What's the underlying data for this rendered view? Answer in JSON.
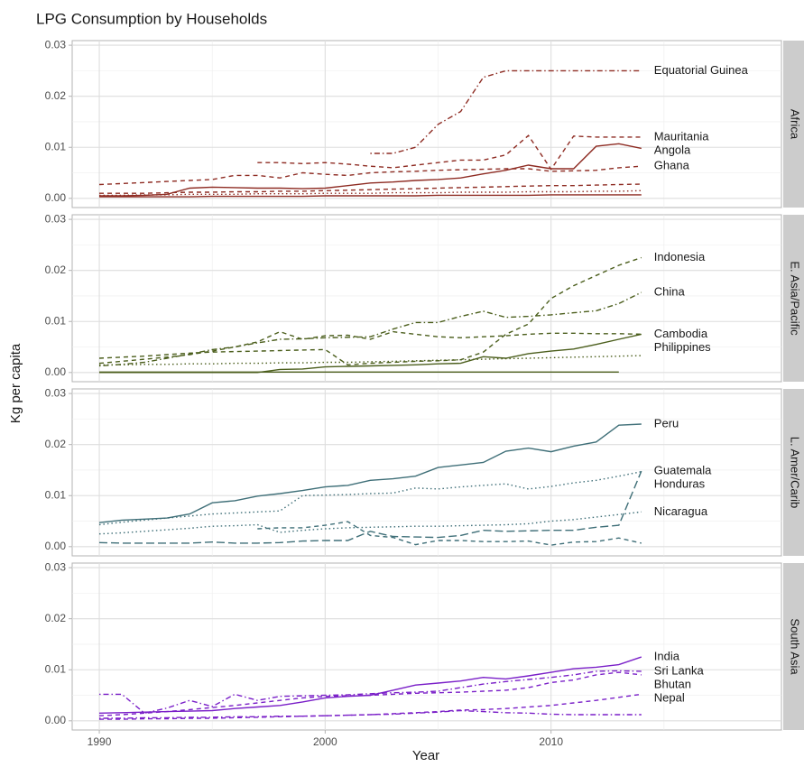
{
  "title": "LPG Consumption by Households",
  "xlabel": "Year",
  "ylabel": "Kg per capita",
  "chart_data": [
    {
      "type": "line",
      "panel": "Africa",
      "x": [
        1990,
        1991,
        1992,
        1993,
        1994,
        1995,
        1996,
        1997,
        1998,
        1999,
        2000,
        2001,
        2002,
        2003,
        2004,
        2005,
        2006,
        2007,
        2008,
        2009,
        2010,
        2011,
        2012,
        2013,
        2014
      ],
      "xlim": [
        1988.8,
        2020.2
      ],
      "xticks": [
        1990,
        2000,
        2010
      ],
      "xminor_ticks": [
        1995,
        2005,
        2015
      ],
      "ylim": [
        -0.0018,
        0.0309
      ],
      "yticks": [
        {
          "value": 0,
          "label": "0.00"
        },
        {
          "value": 0.01,
          "label": "0.01"
        },
        {
          "value": 0.02,
          "label": "0.02"
        },
        {
          "value": 0.03,
          "label": "0.03"
        }
      ],
      "yminor_ticks": [
        0.005,
        0.015,
        0.025
      ],
      "series": [
        {
          "name": "Equatorial Guinea",
          "color": "#8e2c23",
          "linetype": "dotdash",
          "values": [
            null,
            null,
            null,
            null,
            null,
            null,
            null,
            null,
            null,
            null,
            null,
            null,
            0.0088,
            0.0088,
            0.01,
            0.0145,
            0.017,
            0.0237,
            0.025,
            0.025,
            0.025,
            0.025,
            0.025,
            0.025,
            0.025
          ]
        },
        {
          "name": "Mauritania",
          "color": "#8e2c23",
          "linetype": "dashed",
          "values": [
            null,
            null,
            null,
            null,
            null,
            null,
            null,
            0.007,
            0.007,
            0.0068,
            0.007,
            0.0067,
            0.0063,
            0.006,
            0.0065,
            0.007,
            0.0075,
            0.0075,
            0.0085,
            0.0123,
            0.0057,
            0.0122,
            0.012,
            0.012,
            0.012
          ]
        },
        {
          "name": "Angola",
          "color": "#8e2c23",
          "linetype": "solid",
          "values": [
            0.0005,
            0.0005,
            0.0006,
            0.0008,
            0.002,
            0.0022,
            0.0021,
            0.002,
            0.002,
            0.0019,
            0.002,
            0.0025,
            0.003,
            0.0032,
            0.0035,
            0.0037,
            0.004,
            0.0048,
            0.0055,
            0.0065,
            0.0058,
            0.0058,
            0.0102,
            0.0107,
            0.0098
          ]
        },
        {
          "name": "Ghana",
          "color": "#8e2c23",
          "linetype": "dashed",
          "values": [
            0.0027,
            0.0029,
            0.0031,
            0.0033,
            0.0035,
            0.0037,
            0.0045,
            0.0045,
            0.004,
            0.005,
            0.0047,
            0.0045,
            0.005,
            0.0052,
            0.0053,
            0.0055,
            0.0056,
            0.0057,
            0.0058,
            0.0058,
            0.0053,
            0.0054,
            0.0055,
            0.006,
            0.0063
          ]
        },
        {
          "color": "#8e2c23",
          "linetype": "dashed",
          "values": [
            0.001,
            0.001,
            0.001,
            0.0011,
            0.0012,
            0.0012,
            0.0013,
            0.0013,
            0.0014,
            0.0014,
            0.0015,
            0.0016,
            0.0017,
            0.0018,
            0.0019,
            0.002,
            0.0021,
            0.0022,
            0.0023,
            0.0024,
            0.0025,
            0.0025,
            0.0026,
            0.0027,
            0.0028
          ]
        },
        {
          "color": "#8e2c23",
          "linetype": "solid",
          "values": [
            0.0003,
            0.0003,
            0.0003,
            0.0003,
            0.0003,
            0.0004,
            0.0004,
            0.0004,
            0.0004,
            0.0004,
            0.0005,
            0.0005,
            0.0005,
            0.0005,
            0.0005,
            0.0006,
            0.0006,
            0.0006,
            0.0006,
            0.0006,
            0.0007,
            0.0007,
            0.0007,
            0.0007,
            0.0007
          ]
        },
        {
          "color": "#8e2c23",
          "linetype": "dotted",
          "values": [
            0.0006,
            0.0006,
            0.0007,
            0.0007,
            0.0008,
            0.0008,
            0.0008,
            0.0009,
            0.0009,
            0.0009,
            0.001,
            0.001,
            0.001,
            0.0011,
            0.0011,
            0.0011,
            0.0012,
            0.0012,
            0.0012,
            0.0013,
            0.0013,
            0.0013,
            0.0014,
            0.0014,
            0.0015
          ]
        }
      ]
    },
    {
      "type": "line",
      "panel": "E. Asia/Pacific",
      "x": [
        1990,
        1991,
        1992,
        1993,
        1994,
        1995,
        1996,
        1997,
        1998,
        1999,
        2000,
        2001,
        2002,
        2003,
        2004,
        2005,
        2006,
        2007,
        2008,
        2009,
        2010,
        2011,
        2012,
        2013,
        2014
      ],
      "xlim": [
        1988.8,
        2020.2
      ],
      "xticks": [
        1990,
        2000,
        2010
      ],
      "xminor_ticks": [
        1995,
        2005,
        2015
      ],
      "ylim": [
        -0.0018,
        0.0309
      ],
      "yticks": [
        {
          "value": 0,
          "label": "0.00"
        },
        {
          "value": 0.01,
          "label": "0.01"
        },
        {
          "value": 0.02,
          "label": "0.02"
        },
        {
          "value": 0.03,
          "label": "0.03"
        }
      ],
      "yminor_ticks": [
        0.005,
        0.015,
        0.025
      ],
      "series": [
        {
          "name": "Indonesia",
          "color": "#4b5e1c",
          "linetype": "dashed",
          "values": [
            0.0028,
            0.003,
            0.0032,
            0.0035,
            0.0038,
            0.004,
            0.0041,
            0.0042,
            0.0043,
            0.0044,
            0.0045,
            0.0015,
            0.0018,
            0.002,
            0.0022,
            0.0023,
            0.0025,
            0.004,
            0.0075,
            0.0095,
            0.0145,
            0.017,
            0.019,
            0.021,
            0.0225
          ]
        },
        {
          "name": "China",
          "color": "#4b5e1c",
          "linetype": "dotdash",
          "values": [
            0.0013,
            0.0016,
            0.002,
            0.0028,
            0.0036,
            0.0045,
            0.005,
            0.0058,
            0.0065,
            0.0066,
            0.0068,
            0.0069,
            0.007,
            0.0085,
            0.0098,
            0.0098,
            0.011,
            0.012,
            0.0108,
            0.011,
            0.0113,
            0.0117,
            0.0121,
            0.0135,
            0.0157
          ]
        },
        {
          "name": "Cambodia",
          "color": "#4b5e1c",
          "linetype": "dashed",
          "values": [
            0.0018,
            0.0022,
            0.0026,
            0.003,
            0.0035,
            0.0042,
            0.005,
            0.006,
            0.008,
            0.0065,
            0.0072,
            0.0073,
            0.0065,
            0.008,
            0.0075,
            0.007,
            0.0068,
            0.007,
            0.0072,
            0.0075,
            0.0077,
            0.0077,
            0.0076,
            0.0076,
            0.0075
          ]
        },
        {
          "name": "Philippines",
          "color": "#4b5e1c",
          "linetype": "solid",
          "values": [
            0,
            0,
            0,
            0,
            0,
            0,
            0,
            0,
            0.0006,
            0.0007,
            0.0011,
            0.0012,
            0.0013,
            0.0014,
            0.0015,
            0.0017,
            0.0018,
            0.0031,
            0.0028,
            0.0037,
            0.0042,
            0.0046,
            0.0055,
            0.0065,
            0.0075
          ]
        },
        {
          "color": "#4b5e1c",
          "linetype": "dotted",
          "values": [
            0.0015,
            0.0015,
            0.0016,
            0.0016,
            0.0017,
            0.0017,
            0.0018,
            0.0018,
            0.0019,
            0.0019,
            0.002,
            0.002,
            0.0021,
            0.0022,
            0.0023,
            0.0024,
            0.0025,
            0.0026,
            0.0027,
            0.0028,
            0.0029,
            0.003,
            0.0031,
            0.0032,
            0.0033
          ]
        },
        {
          "color": "#4b5e1c",
          "linetype": "solid",
          "values": [
            0.0001,
            0.0001,
            0.0001,
            0.0001,
            0.0001,
            0.0001,
            0.0001,
            0.0001,
            0.0001,
            0.0001,
            0.0001,
            0.0001,
            0.0001,
            0.0001,
            0.0001,
            0.0001,
            0.0001,
            0.0001,
            0.0001,
            0.0001,
            0.0001,
            0.0001,
            0.0001,
            0.0001,
            null
          ]
        }
      ]
    },
    {
      "type": "line",
      "panel": "L. Amer/Carib",
      "x": [
        1990,
        1991,
        1992,
        1993,
        1994,
        1995,
        1996,
        1997,
        1998,
        1999,
        2000,
        2001,
        2002,
        2003,
        2004,
        2005,
        2006,
        2007,
        2008,
        2009,
        2010,
        2011,
        2012,
        2013,
        2014
      ],
      "xlim": [
        1988.8,
        2020.2
      ],
      "xticks": [
        1990,
        2000,
        2010
      ],
      "xminor_ticks": [
        1995,
        2005,
        2015
      ],
      "ylim": [
        -0.0018,
        0.0309
      ],
      "yticks": [
        {
          "value": 0,
          "label": "0.00"
        },
        {
          "value": 0.01,
          "label": "0.01"
        },
        {
          "value": 0.02,
          "label": "0.02"
        },
        {
          "value": 0.03,
          "label": "0.03"
        }
      ],
      "yminor_ticks": [
        0.005,
        0.015,
        0.025
      ],
      "series": [
        {
          "name": "Peru",
          "color": "#3f6f78",
          "linetype": "solid",
          "values": [
            0.0047,
            0.0052,
            0.0054,
            0.0056,
            0.0064,
            0.0086,
            0.009,
            0.0099,
            0.0104,
            0.011,
            0.0117,
            0.012,
            0.013,
            0.0133,
            0.0138,
            0.0155,
            0.016,
            0.0165,
            0.0187,
            0.0193,
            0.0186,
            0.0197,
            0.0205,
            0.0238,
            0.024
          ]
        },
        {
          "name": "Honduras",
          "color": "#3f6f78",
          "linetype": "dotted",
          "values": [
            0.0043,
            0.0048,
            0.0052,
            0.0056,
            0.006,
            0.0064,
            0.0066,
            0.0068,
            0.007,
            0.01,
            0.0101,
            0.0102,
            0.0104,
            0.0105,
            0.0115,
            0.0113,
            0.0117,
            0.012,
            0.0123,
            0.0113,
            0.0118,
            0.0125,
            0.013,
            0.0138,
            0.0147
          ]
        },
        {
          "name": "Guatemala",
          "color": "#3f6f78",
          "linetype": "longdash",
          "values": [
            0.0008,
            0.0007,
            0.0007,
            0.0007,
            0.0007,
            0.0009,
            0.0007,
            0.0007,
            0.0008,
            0.0011,
            0.0012,
            0.0012,
            0.003,
            0.002,
            0.0019,
            0.0018,
            0.0022,
            0.0032,
            0.003,
            0.0031,
            0.0032,
            0.0032,
            0.0038,
            0.0042,
            0.0148
          ]
        },
        {
          "name": "Nicaragua",
          "color": "#3f6f78",
          "linetype": "dotted",
          "values": [
            0.0025,
            0.0027,
            0.003,
            0.0033,
            0.0036,
            0.004,
            0.0041,
            0.0043,
            0.0028,
            0.0032,
            0.0035,
            0.0037,
            0.0038,
            0.0039,
            0.004,
            0.004,
            0.0041,
            0.0042,
            0.0043,
            0.0045,
            0.005,
            0.0053,
            0.0058,
            0.0063,
            0.0068
          ]
        },
        {
          "color": "#3f6f78",
          "linetype": "dashed",
          "values": [
            null,
            null,
            null,
            null,
            null,
            null,
            null,
            0.0035,
            0.0037,
            0.0037,
            0.0042,
            0.0049,
            0.0022,
            0.0018,
            0.0004,
            0.0012,
            0.0012,
            0.001,
            0.001,
            0.0011,
            0.0003,
            0.0009,
            0.001,
            0.0017,
            0.0007
          ]
        }
      ]
    },
    {
      "type": "line",
      "panel": "South Asia",
      "x": [
        1990,
        1991,
        1992,
        1993,
        1994,
        1995,
        1996,
        1997,
        1998,
        1999,
        2000,
        2001,
        2002,
        2003,
        2004,
        2005,
        2006,
        2007,
        2008,
        2009,
        2010,
        2011,
        2012,
        2013,
        2014
      ],
      "xlim": [
        1988.8,
        2020.2
      ],
      "xticks": [
        1990,
        2000,
        2010
      ],
      "xminor_ticks": [
        1995,
        2005,
        2015
      ],
      "ylim": [
        -0.0018,
        0.0309
      ],
      "yticks": [
        {
          "value": 0,
          "label": "0.00"
        },
        {
          "value": 0.01,
          "label": "0.01"
        },
        {
          "value": 0.02,
          "label": "0.02"
        },
        {
          "value": 0.03,
          "label": "0.03"
        }
      ],
      "yminor_ticks": [
        0.005,
        0.015,
        0.025
      ],
      "series": [
        {
          "name": "India",
          "color": "#7a1fc8",
          "linetype": "solid",
          "values": [
            0.0015,
            0.0016,
            0.0017,
            0.0018,
            0.0019,
            0.002,
            0.0024,
            0.0027,
            0.003,
            0.0037,
            0.0045,
            0.0048,
            0.005,
            0.006,
            0.007,
            0.0074,
            0.0078,
            0.0085,
            0.0082,
            0.0088,
            0.0095,
            0.0102,
            0.0105,
            0.011,
            0.0125
          ]
        },
        {
          "name": "Sri Lanka",
          "color": "#7a1fc8",
          "linetype": "dotdash",
          "values": [
            0.0052,
            0.0052,
            0.0015,
            0.0025,
            0.004,
            0.0028,
            0.0052,
            0.004,
            0.0048,
            0.0049,
            0.005,
            0.0051,
            0.0053,
            0.0055,
            0.0056,
            0.0058,
            0.0065,
            0.0072,
            0.0077,
            0.0081,
            0.0085,
            0.009,
            0.0097,
            0.0098,
            0.0097
          ]
        },
        {
          "name": "Bhutan",
          "color": "#7a1fc8",
          "linetype": "dashed",
          "values": [
            0.001,
            0.0012,
            0.0015,
            0.0018,
            0.0022,
            0.0026,
            0.003,
            0.0035,
            0.004,
            0.0045,
            0.0048,
            0.0049,
            0.005,
            0.0052,
            0.0054,
            0.0055,
            0.0056,
            0.0058,
            0.006,
            0.0065,
            0.0075,
            0.008,
            0.009,
            0.0095,
            0.009
          ]
        },
        {
          "name": "Nepal",
          "color": "#7a1fc8",
          "linetype": "dashed",
          "values": [
            0.0003,
            0.0003,
            0.0004,
            0.0004,
            0.0005,
            0.0005,
            0.0006,
            0.0007,
            0.0008,
            0.0009,
            0.001,
            0.0011,
            0.0012,
            0.0014,
            0.0016,
            0.0018,
            0.0021,
            0.0022,
            0.0024,
            0.0027,
            0.003,
            0.0035,
            0.004,
            0.0046,
            0.0052
          ]
        },
        {
          "color": "#7a1fc8",
          "linetype": "dotdash",
          "values": [
            0.0005,
            0.0005,
            0.0006,
            0.0006,
            0.0007,
            0.0007,
            0.0008,
            0.0008,
            0.0009,
            0.0009,
            0.001,
            0.0011,
            0.0012,
            0.0013,
            0.0015,
            0.0017,
            0.002,
            0.0018,
            0.0016,
            0.0015,
            0.0013,
            0.0012,
            0.0012,
            0.0012,
            0.0012
          ]
        }
      ]
    }
  ]
}
